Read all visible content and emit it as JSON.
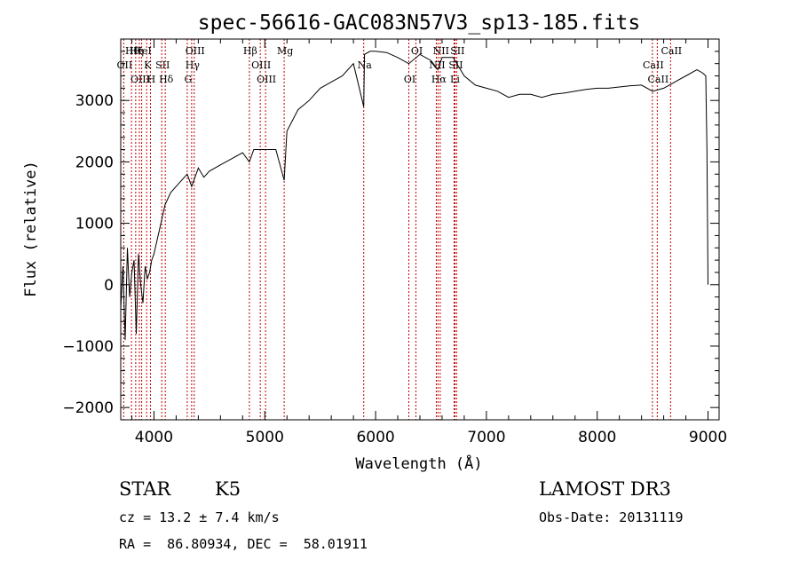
{
  "chart_data": {
    "type": "line",
    "title": "spec-56616-GAC083N57V3_sp13-185.fits",
    "xlabel": "Wavelength (Å)",
    "ylabel": "Flux (relative)",
    "xlim": [
      3700,
      9100
    ],
    "ylim": [
      -2200,
      4000
    ],
    "x_ticks": [
      4000,
      5000,
      6000,
      7000,
      8000,
      9000
    ],
    "y_ticks": [
      -2000,
      -1000,
      0,
      1000,
      2000,
      3000
    ],
    "series": [
      {
        "name": "spectrum",
        "x": [
          3700,
          3720,
          3740,
          3760,
          3780,
          3800,
          3820,
          3840,
          3860,
          3880,
          3900,
          3920,
          3940,
          3960,
          3980,
          4000,
          4050,
          4100,
          4150,
          4200,
          4250,
          4300,
          4340,
          4400,
          4450,
          4500,
          4600,
          4700,
          4800,
          4861,
          4900,
          5000,
          5100,
          5175,
          5200,
          5300,
          5400,
          5500,
          5600,
          5700,
          5800,
          5893,
          5900,
          5950,
          6000,
          6100,
          6200,
          6300,
          6400,
          6500,
          6563,
          6600,
          6700,
          6800,
          6900,
          7000,
          7100,
          7200,
          7300,
          7400,
          7500,
          7600,
          7700,
          7800,
          7900,
          8000,
          8100,
          8200,
          8300,
          8400,
          8500,
          8600,
          8700,
          8800,
          8900,
          8950,
          8980,
          8990,
          9000
        ],
        "y": [
          -400,
          300,
          -900,
          600,
          -200,
          200,
          400,
          -800,
          500,
          0,
          -300,
          300,
          100,
          200,
          400,
          500,
          900,
          1300,
          1500,
          1600,
          1700,
          1800,
          1600,
          1900,
          1750,
          1850,
          1950,
          2050,
          2150,
          2000,
          2200,
          2200,
          2200,
          1700,
          2500,
          2850,
          3000,
          3200,
          3300,
          3400,
          3600,
          2900,
          3750,
          3800,
          3800,
          3780,
          3700,
          3600,
          3750,
          3650,
          3500,
          3700,
          3700,
          3400,
          3250,
          3200,
          3150,
          3050,
          3100,
          3100,
          3050,
          3100,
          3120,
          3150,
          3180,
          3200,
          3200,
          3220,
          3240,
          3250,
          3150,
          3200,
          3300,
          3400,
          3500,
          3450,
          3400,
          2200,
          0
        ]
      }
    ],
    "lines": [
      {
        "name": "Hθ",
        "x": 3797
      },
      {
        "name": "OII",
        "x": 3727
      },
      {
        "name": "OIII",
        "x": 3868
      },
      {
        "name": "HeI",
        "x": 3889
      },
      {
        "name": "K",
        "x": 3934
      },
      {
        "name": "H",
        "x": 3968
      },
      {
        "name": "Hη",
        "x": 3835
      },
      {
        "name": "SII",
        "x": 4070
      },
      {
        "name": "Hδ",
        "x": 4102
      },
      {
        "name": "OIII",
        "x": 4363
      },
      {
        "name": "Hγ",
        "x": 4340
      },
      {
        "name": "G",
        "x": 4300
      },
      {
        "name": "Hβ",
        "x": 4861
      },
      {
        "name": "OIII",
        "x": 4959
      },
      {
        "name": "OIII",
        "x": 5007
      },
      {
        "name": "Mg",
        "x": 5175
      },
      {
        "name": "Na",
        "x": 5893
      },
      {
        "name": "OI",
        "x": 6300
      },
      {
        "name": "OI",
        "x": 6364
      },
      {
        "name": "NII",
        "x": 6548
      },
      {
        "name": "Hα",
        "x": 6563
      },
      {
        "name": "NII",
        "x": 6583
      },
      {
        "name": "SII",
        "x": 6716
      },
      {
        "name": "Li",
        "x": 6708
      },
      {
        "name": "SII",
        "x": 6731
      },
      {
        "name": "CaII",
        "x": 8498
      },
      {
        "name": "CaII",
        "x": 8542
      },
      {
        "name": "CaII",
        "x": 8662
      }
    ]
  },
  "info": {
    "object_class": "STAR",
    "subclass": "K5",
    "survey": "LAMOST DR3",
    "velocity": "cz = 13.2 ± 7.4 km/s",
    "obs_date": "Obs-Date: 20131119",
    "coords": "RA =  86.80934, DEC =  58.01911"
  }
}
